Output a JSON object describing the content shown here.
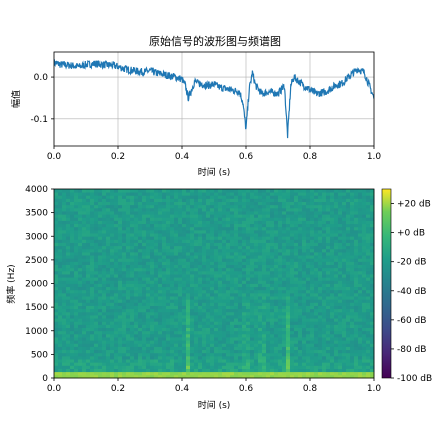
{
  "title": "原始信号的波形图与频谱图",
  "chart_data": [
    {
      "type": "line",
      "title": "原始信号的波形图与频谱图",
      "xlabel": "时间 (s)",
      "ylabel": "幅值",
      "xlim": [
        0.0,
        1.0
      ],
      "ylim": [
        -0.165,
        0.06
      ],
      "x_ticks": [
        "0.0",
        "0.2",
        "0.4",
        "0.6",
        "0.8",
        "1.0"
      ],
      "y_ticks": [
        "0.0",
        "-0.1"
      ],
      "grid": true,
      "line_color": "#1f77b4",
      "series": [
        {
          "x": [
            0.0,
            0.02,
            0.05,
            0.08,
            0.1,
            0.13,
            0.15,
            0.18,
            0.2,
            0.22,
            0.25,
            0.28,
            0.3,
            0.32,
            0.35,
            0.38,
            0.4,
            0.41,
            0.42,
            0.43,
            0.44,
            0.45,
            0.48,
            0.5,
            0.52,
            0.55,
            0.58,
            0.59,
            0.6,
            0.61,
            0.62,
            0.63,
            0.65,
            0.67,
            0.7,
            0.72,
            0.73,
            0.74,
            0.75,
            0.78,
            0.8,
            0.82,
            0.85,
            0.88,
            0.9,
            0.92,
            0.95,
            0.97,
            1.0
          ],
          "values": [
            0.035,
            0.03,
            0.028,
            0.025,
            0.03,
            0.032,
            0.03,
            0.028,
            0.025,
            0.02,
            0.015,
            0.012,
            0.015,
            0.01,
            0.005,
            0.0,
            -0.005,
            -0.02,
            -0.05,
            -0.03,
            -0.01,
            -0.015,
            -0.02,
            -0.018,
            -0.025,
            -0.03,
            -0.035,
            -0.06,
            -0.125,
            -0.03,
            0.01,
            -0.02,
            -0.04,
            -0.035,
            -0.04,
            -0.02,
            -0.14,
            -0.02,
            0.0,
            -0.02,
            -0.03,
            -0.04,
            -0.035,
            -0.02,
            -0.015,
            0.0,
            0.02,
            0.01,
            -0.05
          ]
        }
      ]
    },
    {
      "type": "heatmap",
      "xlabel": "时间 (s)",
      "ylabel": "频率 (Hz)",
      "xlim": [
        0.0,
        1.0
      ],
      "ylim": [
        0,
        4000
      ],
      "x_ticks": [
        "0.0",
        "0.2",
        "0.4",
        "0.6",
        "0.8",
        "1.0"
      ],
      "y_ticks": [
        "0",
        "500",
        "1000",
        "1500",
        "2000",
        "2500",
        "3000",
        "3500",
        "4000"
      ],
      "colormap": "viridis",
      "colorbar_range_db": [
        -100,
        30
      ],
      "colorbar_labels": [
        "+20 dB",
        "+0 dB",
        "-20 dB",
        "-40 dB",
        "-60 dB",
        "-80 dB",
        "-100 dB"
      ],
      "low_band_db": 20,
      "background_db": -20,
      "bursts_s": [
        0.42,
        0.6,
        0.65,
        0.73
      ]
    }
  ]
}
